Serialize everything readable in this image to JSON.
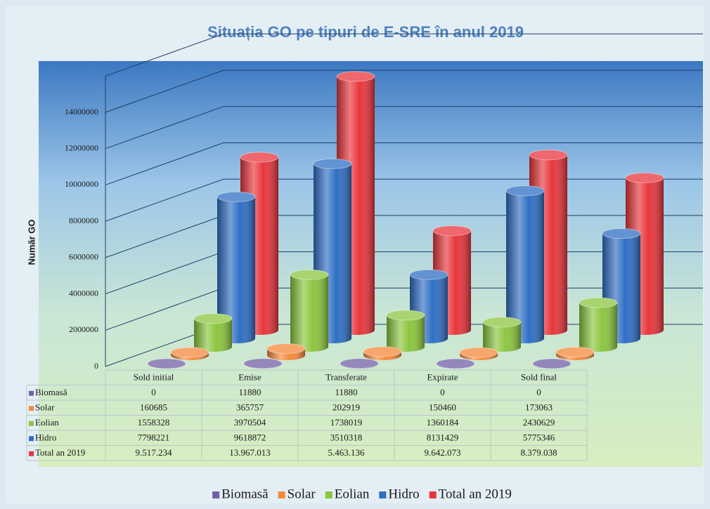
{
  "chart_data": {
    "type": "bar3d",
    "title": "Situația GO pe tipuri de E-SRE în anul 2019",
    "y_label": "Număr GO",
    "categories": [
      "Sold initial",
      "Emise",
      "Transferate",
      "Expirate",
      "Sold final"
    ],
    "series": [
      {
        "name": "Biomasă",
        "color": "#6f5fa6",
        "values": [
          0,
          11880,
          11880,
          0,
          0
        ]
      },
      {
        "name": "Solar",
        "color": "#f58a3c",
        "values": [
          160685,
          365757,
          202919,
          150460,
          173063
        ]
      },
      {
        "name": "Eolian",
        "color": "#8cc63f",
        "values": [
          1558328,
          3970504,
          1738019,
          1360184,
          2430629
        ]
      },
      {
        "name": "Hidro",
        "color": "#2f6fc4",
        "values": [
          7798221,
          9618872,
          3510318,
          8131429,
          5775346
        ]
      },
      {
        "name": "Total an 2019",
        "color": "#e8363c",
        "values": [
          9517234,
          13967013,
          5463136,
          9642073,
          8379038
        ],
        "value_labels": [
          "9.517.234",
          "13.967.013",
          "5.463.136",
          "9.642.073",
          "8.379.038"
        ]
      }
    ],
    "ylim": [
      0,
      16000000
    ],
    "yticks": [
      0,
      2000000,
      4000000,
      6000000,
      8000000,
      10000000,
      12000000,
      14000000
    ],
    "grid": true,
    "legend": "bottom",
    "data_table": true
  }
}
